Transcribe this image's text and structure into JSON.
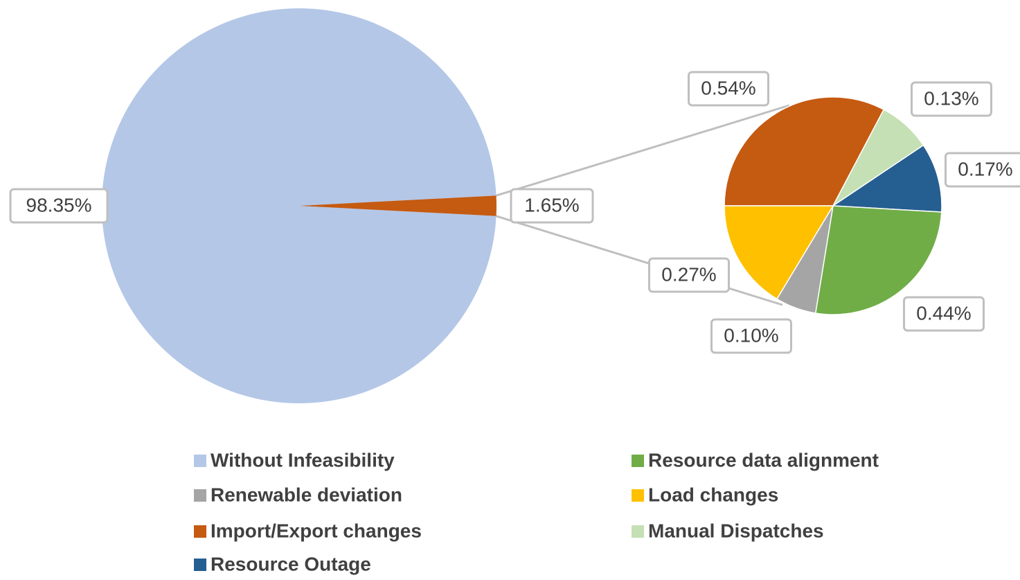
{
  "chart_data": {
    "type": "pie_of_pie",
    "categories": [
      "Without Infeasibility",
      "Renewable deviation",
      "Import/Export changes",
      "Resource Outage",
      "Resource data alignment",
      "Load changes",
      "Manual Dispatches"
    ],
    "values": [
      98.35,
      0.1,
      0.54,
      0.17,
      0.44,
      0.27,
      0.13
    ],
    "value_labels": [
      "98.35%",
      "0.10%",
      "0.54%",
      "0.17%",
      "0.44%",
      "0.27%",
      "0.13%"
    ],
    "colors": [
      "#b4c7e7",
      "#a5a5a5",
      "#c55a11",
      "#255e91",
      "#70ad47",
      "#ffc000",
      "#c5e0b4"
    ],
    "other_value": 1.65,
    "other_label": "1.65%",
    "other_color": "#c55a11",
    "legend": "bottom"
  }
}
